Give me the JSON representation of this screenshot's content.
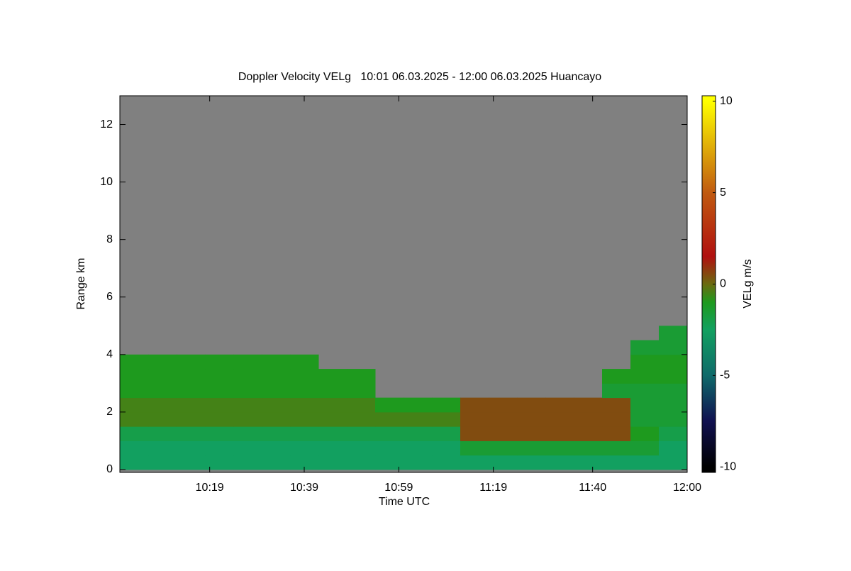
{
  "chart_data": {
    "type": "heatmap",
    "title": "Doppler Velocity VELg   10:01 06.03.2025 - 12:00 06.03.2025 Huancayo",
    "x_label": "Time UTC",
    "y_label": "Range km",
    "colorbar_label": "VELg m/s",
    "x": [
      "10:00",
      "10:06",
      "10:12",
      "10:18",
      "10:24",
      "10:30",
      "10:36",
      "10:42",
      "10:48",
      "10:54",
      "11:00",
      "11:06",
      "11:12",
      "11:18",
      "11:24",
      "11:30",
      "11:36",
      "11:42",
      "11:48",
      "11:54"
    ],
    "y": [
      0,
      0.5,
      1,
      1.5,
      2,
      2.5,
      3,
      3.5,
      4,
      4.5
    ],
    "values": [
      [
        -2.5,
        -2.5,
        -2.5,
        -2.5,
        -2.5,
        -2.5,
        -2.5,
        -2.5,
        -2.5,
        -2.5,
        -2.5,
        -2.5,
        -2.5,
        -2.5,
        -2.5,
        -2.5,
        -2.5,
        -2.5,
        -2.5,
        -2.5
      ],
      [
        -2.5,
        -2.5,
        -2.5,
        -2.5,
        -2.5,
        -2.5,
        -2.5,
        -2.5,
        -2.5,
        -2.5,
        -2.5,
        -2.5,
        -1.5,
        -1.5,
        -1.5,
        -1.5,
        -1.5,
        -1.5,
        -1.5,
        -2.5
      ],
      [
        -2,
        -2,
        -2,
        -2,
        -2,
        -2,
        -2,
        -2,
        -2,
        -2,
        -2,
        -2,
        0.5,
        0.5,
        0.5,
        0.5,
        0.5,
        0.5,
        -1,
        -2
      ],
      [
        -0.5,
        -0.5,
        -0.5,
        -0.5,
        -0.5,
        -0.5,
        -0.5,
        -0.5,
        -0.5,
        -0.5,
        -0.5,
        -0.5,
        0.5,
        0.5,
        0.5,
        0.5,
        0.5,
        0.5,
        -1.5,
        -1.5
      ],
      [
        -0.5,
        -0.5,
        -0.5,
        -0.5,
        -0.5,
        -0.5,
        -0.5,
        -0.5,
        -0.5,
        -1,
        -1,
        -1,
        0.5,
        0.5,
        0.5,
        0.5,
        0.5,
        0.5,
        -1.5,
        -1.5
      ],
      [
        -1,
        -1,
        -1,
        -1,
        -1,
        -1,
        -1,
        -1,
        -1,
        null,
        null,
        null,
        null,
        null,
        null,
        null,
        null,
        -1.5,
        -1.5,
        -1.5
      ],
      [
        -1,
        -1,
        -1,
        -1,
        -1,
        -1,
        -1,
        -1,
        -1,
        null,
        null,
        null,
        null,
        null,
        null,
        null,
        null,
        -1,
        -1,
        -1
      ],
      [
        -1,
        -1,
        -1,
        -1,
        -1,
        -1,
        -1,
        null,
        null,
        null,
        null,
        null,
        null,
        null,
        null,
        null,
        null,
        null,
        -1,
        -1
      ],
      [
        null,
        null,
        null,
        null,
        null,
        null,
        null,
        null,
        null,
        null,
        null,
        null,
        null,
        null,
        null,
        null,
        null,
        null,
        -1.5,
        -1.5
      ],
      [
        null,
        null,
        null,
        null,
        null,
        null,
        null,
        null,
        null,
        null,
        null,
        null,
        null,
        null,
        null,
        null,
        null,
        null,
        null,
        -1.5
      ]
    ],
    "x_step_minutes": 6,
    "y_step": 0.5,
    "xlim": [
      "10:00",
      "12:00"
    ],
    "xticks": [
      "10:19",
      "10:39",
      "10:59",
      "11:19",
      "11:40",
      "12:00"
    ],
    "ylim": [
      -0.1,
      13
    ],
    "yticks": [
      0,
      2,
      4,
      6,
      8,
      10,
      12
    ],
    "clim": [
      -10.3,
      10.3
    ],
    "cticks": [
      -10,
      -5,
      0,
      5,
      10
    ],
    "no_data_color": "#808080",
    "colormap": [
      [
        -10,
        "#000000"
      ],
      [
        -7.5,
        "#101050"
      ],
      [
        -5,
        "#0f6a6a"
      ],
      [
        -2.5,
        "#12a060"
      ],
      [
        -1,
        "#1e9a1e"
      ],
      [
        0,
        "#6a6a10"
      ],
      [
        1.5,
        "#b01010"
      ],
      [
        5,
        "#c05a10"
      ],
      [
        10,
        "#ffff00"
      ]
    ]
  }
}
